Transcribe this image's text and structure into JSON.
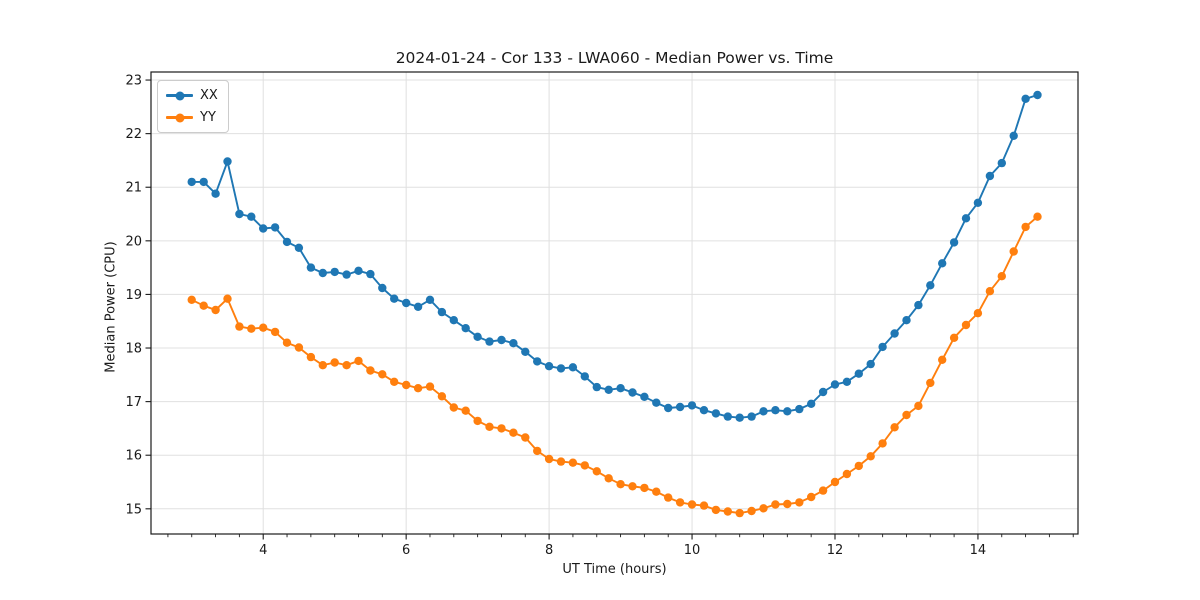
{
  "title": "2024-01-24 - Cor 133 - LWA060 - Median Power vs. Time",
  "xlabel": "UT Time (hours)",
  "ylabel": "Median Power (CPU)",
  "colors": {
    "xx": "#1f77b4",
    "yy": "#ff7f0e",
    "grid": "#e0e0e0",
    "spine": "#1a1a1a",
    "text": "#1a1a1a"
  },
  "legend": {
    "items": [
      {
        "label": "XX",
        "color": "#1f77b4"
      },
      {
        "label": "YY",
        "color": "#ff7f0e"
      }
    ],
    "position": "upper left"
  },
  "chart_data": {
    "type": "line",
    "title": "2024-01-24 - Cor 133 - LWA060 - Median Power vs. Time",
    "xlabel": "UT Time (hours)",
    "ylabel": "Median Power (CPU)",
    "xlim": [
      2.43,
      15.4
    ],
    "ylim": [
      14.53,
      23.15
    ],
    "x_ticks": [
      4,
      6,
      8,
      10,
      12,
      14
    ],
    "x_minor_tick_step": 0.33333,
    "y_ticks": [
      15,
      16,
      17,
      18,
      19,
      20,
      21,
      22,
      23
    ],
    "grid": true,
    "legend_position": "upper left",
    "marker": "o",
    "x": [
      3,
      3.1667,
      3.3333,
      3.5,
      3.6667,
      3.8333,
      4,
      4.1667,
      4.3333,
      4.5,
      4.6667,
      4.8333,
      5,
      5.1667,
      5.3333,
      5.5,
      5.6667,
      5.8333,
      6,
      6.1667,
      6.3333,
      6.5,
      6.6667,
      6.8333,
      7,
      7.1667,
      7.3333,
      7.5,
      7.6667,
      7.8333,
      8,
      8.1667,
      8.3333,
      8.5,
      8.6667,
      8.8333,
      9,
      9.1667,
      9.3333,
      9.5,
      9.6667,
      9.8333,
      10,
      10.1667,
      10.3333,
      10.5,
      10.6667,
      10.8333,
      11,
      11.1667,
      11.3333,
      11.5,
      11.6667,
      11.8333,
      12,
      12.1667,
      12.3333,
      12.5,
      12.6667,
      12.8333,
      13,
      13.1667,
      13.3333,
      13.5,
      13.6667,
      13.8333,
      14,
      14.1667,
      14.3333,
      14.5,
      14.6667,
      14.8333
    ],
    "series": [
      {
        "name": "XX",
        "color": "#1f77b4",
        "values": [
          21.1,
          21.1,
          20.88,
          21.48,
          20.5,
          20.45,
          20.23,
          20.25,
          19.98,
          19.87,
          19.5,
          19.4,
          19.42,
          19.37,
          19.44,
          19.38,
          19.12,
          18.92,
          18.84,
          18.77,
          18.9,
          18.67,
          18.52,
          18.37,
          18.21,
          18.12,
          18.15,
          18.09,
          17.93,
          17.75,
          17.66,
          17.62,
          17.64,
          17.47,
          17.27,
          17.22,
          17.25,
          17.17,
          17.09,
          16.98,
          16.88,
          16.9,
          16.93,
          16.84,
          16.78,
          16.72,
          16.7,
          16.72,
          16.82,
          16.84,
          16.82,
          16.86,
          16.96,
          17.18,
          17.32,
          17.37,
          17.52,
          17.7,
          18.02,
          18.27,
          18.52,
          18.8,
          19.17,
          19.58,
          19.97,
          20.42,
          20.71,
          21.21,
          21.45,
          21.96,
          22.65,
          22.72
        ]
      },
      {
        "name": "YY",
        "color": "#ff7f0e",
        "values": [
          18.9,
          18.79,
          18.71,
          18.92,
          18.4,
          18.36,
          18.38,
          18.3,
          18.1,
          18.01,
          17.83,
          17.68,
          17.73,
          17.68,
          17.76,
          17.58,
          17.51,
          17.37,
          17.31,
          17.25,
          17.28,
          17.1,
          16.89,
          16.83,
          16.64,
          16.53,
          16.5,
          16.42,
          16.33,
          16.08,
          15.93,
          15.88,
          15.86,
          15.81,
          15.7,
          15.57,
          15.46,
          15.42,
          15.39,
          15.32,
          15.21,
          15.12,
          15.08,
          15.06,
          14.98,
          14.95,
          14.92,
          14.96,
          15.01,
          15.08,
          15.09,
          15.12,
          15.22,
          15.34,
          15.5,
          15.65,
          15.8,
          15.98,
          16.22,
          16.52,
          16.75,
          16.92,
          17.35,
          17.78,
          18.19,
          18.43,
          18.65,
          19.06,
          19.34,
          19.8,
          20.26,
          20.45
        ]
      }
    ]
  }
}
